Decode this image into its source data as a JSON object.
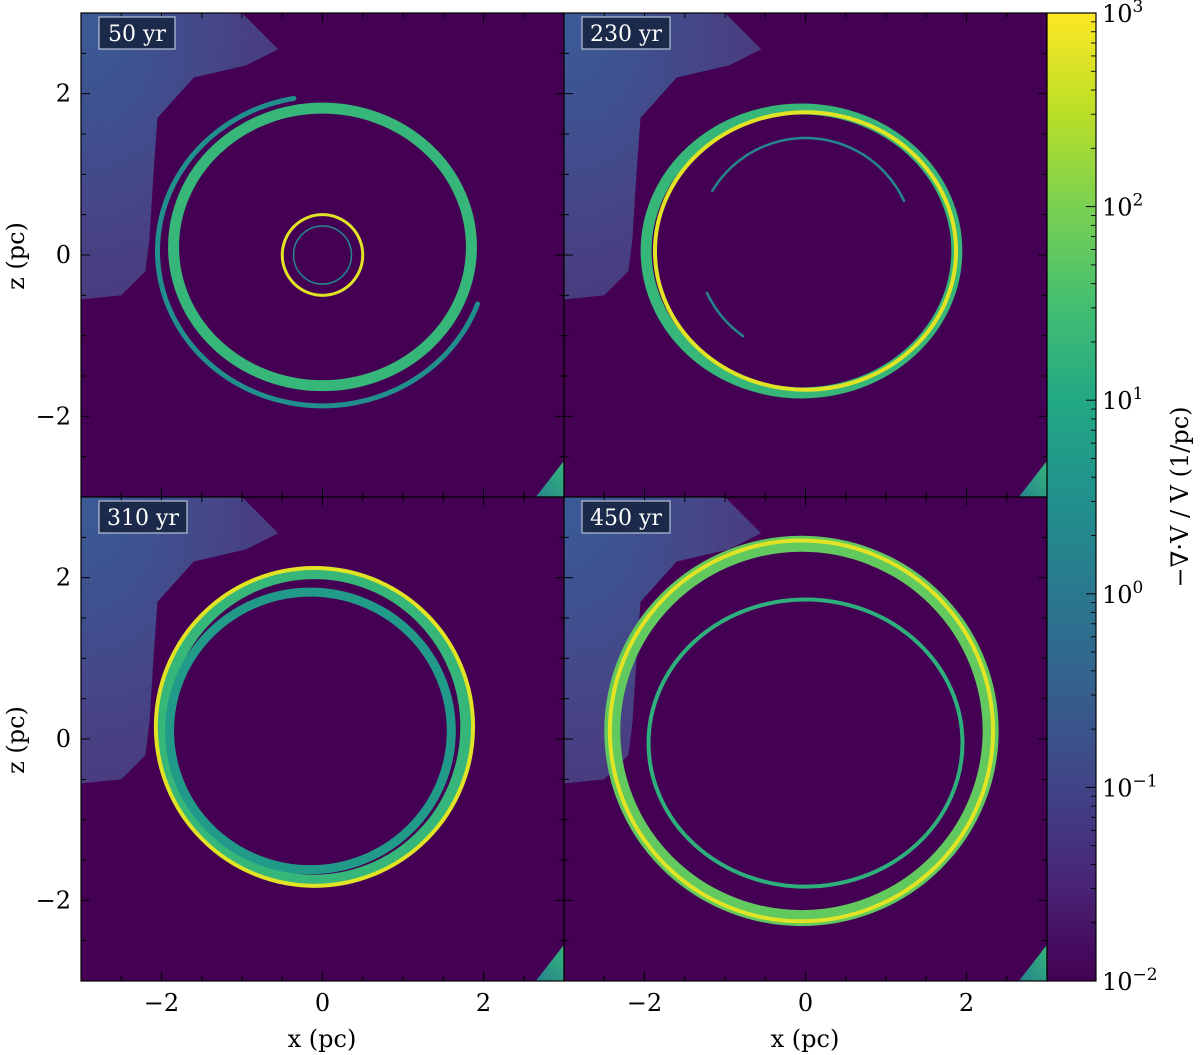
{
  "chart_data": {
    "type": "heatmap",
    "colormap": "viridis",
    "panels": [
      {
        "time_label": "50 yr",
        "rings": [
          {
            "shape": "main-shell",
            "cx": 0.0,
            "cz": 0.1,
            "rx": 1.85,
            "rz": 1.72,
            "value": 20
          },
          {
            "shape": "outer-edge-partial",
            "cx": 0.0,
            "cz": 0.05,
            "rx": 2.05,
            "rz": 1.92,
            "value": 3,
            "arc_deg": [
              100,
              340
            ]
          },
          {
            "shape": "inner-bright",
            "cx": 0.0,
            "cz": 0.0,
            "rx": 0.5,
            "rz": 0.5,
            "value": 600
          },
          {
            "shape": "inner-faint",
            "cx": 0.0,
            "cz": 0.0,
            "rx": 0.36,
            "rz": 0.36,
            "value": 2
          }
        ]
      },
      {
        "time_label": "230 yr",
        "rings": [
          {
            "shape": "main-shell",
            "cx": -0.05,
            "cz": 0.05,
            "rx": 1.93,
            "rz": 1.76,
            "value": 20
          },
          {
            "shape": "bright-rim",
            "cx": 0.0,
            "cz": 0.05,
            "rx": 1.87,
            "rz": 1.72,
            "value": 600
          },
          {
            "shape": "inner-arcs",
            "cx": 0.0,
            "cz": 0.1,
            "rx": 1.35,
            "rz": 1.35,
            "value": 2,
            "arc_deg": [
              25,
              150
            ]
          },
          {
            "shape": "inner-arcs",
            "cx": 0.0,
            "cz": 0.1,
            "rx": 1.35,
            "rz": 1.35,
            "value": 2,
            "arc_deg": [
              205,
              235
            ]
          }
        ]
      },
      {
        "time_label": "310 yr",
        "rings": [
          {
            "shape": "main-shell",
            "cx": -0.1,
            "cz": 0.15,
            "rx": 1.88,
            "rz": 1.9,
            "value": 20
          },
          {
            "shape": "bright-rim",
            "cx": -0.1,
            "cz": 0.15,
            "rx": 1.97,
            "rz": 1.97,
            "value": 600
          },
          {
            "shape": "inner-wall",
            "cx": -0.15,
            "cz": 0.1,
            "rx": 1.75,
            "rz": 1.72,
            "value": 5
          }
        ]
      },
      {
        "time_label": "450 yr",
        "rings": [
          {
            "shape": "outer-shell",
            "cx": -0.05,
            "cz": 0.1,
            "rx": 2.35,
            "rz": 2.32,
            "value": 60
          },
          {
            "shape": "bright-rim",
            "cx": -0.05,
            "cz": 0.1,
            "rx": 2.38,
            "rz": 2.36,
            "value": 600
          },
          {
            "shape": "inner-ring",
            "cx": 0.0,
            "cz": -0.05,
            "rx": 1.95,
            "rz": 1.78,
            "value": 15
          }
        ]
      }
    ],
    "x_axis": {
      "label": "x  (pc)",
      "range": [
        -3,
        3
      ],
      "ticks": [
        -2,
        0,
        2
      ],
      "tick_labels": [
        "−2",
        "0",
        "2"
      ]
    },
    "z_axis": {
      "label": "z  (pc)",
      "range": [
        -3,
        3
      ],
      "ticks": [
        -2,
        0,
        2
      ],
      "tick_labels": [
        "−2",
        "0",
        "2"
      ]
    },
    "colorbar": {
      "label": "−∇·V / V  (1/pc)",
      "scale": "log",
      "range": [
        0.01,
        1000
      ],
      "ticks": [
        {
          "base": "10",
          "exp": "3",
          "value": 1000
        },
        {
          "base": "10",
          "exp": "2",
          "value": 100
        },
        {
          "base": "10",
          "exp": "1",
          "value": 10
        },
        {
          "base": "10",
          "exp": "0",
          "value": 1
        },
        {
          "base": "10",
          "exp": "−1",
          "value": 0.1
        },
        {
          "base": "10",
          "exp": "−2",
          "value": 0.01
        }
      ]
    },
    "background_value": 0.01,
    "upper_left_cloud_value": 0.3,
    "corner_patch_value": 5
  }
}
